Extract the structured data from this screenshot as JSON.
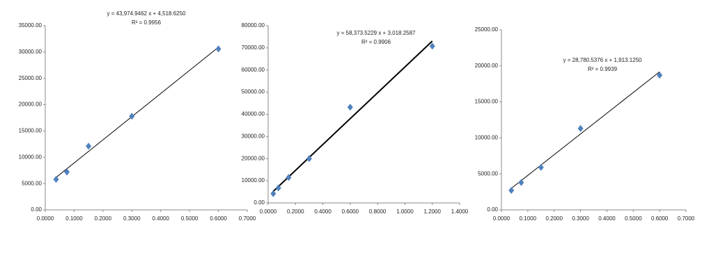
{
  "chart_data": [
    {
      "type": "scatter",
      "color": "#4f81bd",
      "trend_color": "#000000",
      "x": [
        0.0375,
        0.075,
        0.15,
        0.3,
        0.6
      ],
      "values": [
        5800,
        7200,
        12100,
        17800,
        30600
      ],
      "trendline": {
        "x": [
          0.0375,
          0.6
        ],
        "values": [
          6168,
          30904
        ]
      },
      "equation": "y = 43,974.9462 x + 4,518.6250",
      "r_squared": "R² = 0.9956",
      "xlim": [
        0,
        0.7
      ],
      "xticks": [
        {
          "value": 0,
          "label": "0.0000"
        },
        {
          "value": 0.1,
          "label": "0.1000"
        },
        {
          "value": 0.2,
          "label": "0.2000"
        },
        {
          "value": 0.3,
          "label": "0.3000"
        },
        {
          "value": 0.4,
          "label": "0.4000"
        },
        {
          "value": 0.5,
          "label": "0.5000"
        },
        {
          "value": 0.6,
          "label": "0.6000"
        },
        {
          "value": 0.7,
          "label": "0.7000"
        }
      ],
      "ylim": [
        0,
        35000
      ],
      "yticks": [
        {
          "value": 0,
          "label": "0.00"
        },
        {
          "value": 5000,
          "label": "5000.00"
        },
        {
          "value": 10000,
          "label": "10000.00"
        },
        {
          "value": 15000,
          "label": "15000.00"
        },
        {
          "value": 20000,
          "label": "20000.00"
        },
        {
          "value": 25000,
          "label": "25000.00"
        },
        {
          "value": 30000,
          "label": "30000.00"
        },
        {
          "value": 35000,
          "label": "35000.00"
        }
      ]
    },
    {
      "type": "scatter",
      "color": "#4f81bd",
      "trend_color": "#000000",
      "x": [
        0.0375,
        0.075,
        0.15,
        0.3,
        0.6,
        1.2
      ],
      "values": [
        4200,
        6800,
        11500,
        20000,
        43200,
        70800
      ],
      "trendline": {
        "x": [
          0.0375,
          1.2
        ],
        "values": [
          5207,
          73066
        ]
      },
      "equation": "y = 58,373.5229 x + 3,018.2587",
      "r_squared": "R² = 0.9906",
      "xlim": [
        0,
        1.4
      ],
      "xticks": [
        {
          "value": 0,
          "label": "0.0000"
        },
        {
          "value": 0.2,
          "label": "0.2000"
        },
        {
          "value": 0.4,
          "label": "0.4000"
        },
        {
          "value": 0.6,
          "label": "0.6000"
        },
        {
          "value": 0.8,
          "label": "0.8000"
        },
        {
          "value": 1,
          "label": "1.0000"
        },
        {
          "value": 1.2,
          "label": "1.2000"
        },
        {
          "value": 1.4,
          "label": "1.4000"
        }
      ],
      "ylim": [
        0,
        80000
      ],
      "yticks": [
        {
          "value": 0,
          "label": "0.00"
        },
        {
          "value": 10000,
          "label": "10000.00"
        },
        {
          "value": 20000,
          "label": "20000.00"
        },
        {
          "value": 30000,
          "label": "30000.00"
        },
        {
          "value": 40000,
          "label": "40000.00"
        },
        {
          "value": 50000,
          "label": "50000.00"
        },
        {
          "value": 60000,
          "label": "60000.00"
        },
        {
          "value": 70000,
          "label": "70000.00"
        },
        {
          "value": 80000,
          "label": "80000.00"
        }
      ]
    },
    {
      "type": "scatter",
      "color": "#4f81bd",
      "trend_color": "#000000",
      "x": [
        0.0375,
        0.075,
        0.15,
        0.3,
        0.6
      ],
      "values": [
        2700,
        3800,
        5900,
        11300,
        18700
      ],
      "trendline": {
        "x": [
          0.0375,
          0.6
        ],
        "values": [
          2993,
          19182
        ]
      },
      "equation": "y = 28,780.5376 x + 1,913.1250",
      "r_squared": "R² = 0.9939",
      "xlim": [
        0,
        0.7
      ],
      "xticks": [
        {
          "value": 0,
          "label": "0.0000"
        },
        {
          "value": 0.1,
          "label": "0.1000"
        },
        {
          "value": 0.2,
          "label": "0.2000"
        },
        {
          "value": 0.3,
          "label": "0.3000"
        },
        {
          "value": 0.4,
          "label": "0.4000"
        },
        {
          "value": 0.5,
          "label": "0.5000"
        },
        {
          "value": 0.6,
          "label": "0.6000"
        },
        {
          "value": 0.7,
          "label": "0.7000"
        }
      ],
      "ylim": [
        0,
        25000
      ],
      "yticks": [
        {
          "value": 0,
          "label": "0.00"
        },
        {
          "value": 5000,
          "label": "5000.00"
        },
        {
          "value": 10000,
          "label": "10000.00"
        },
        {
          "value": 15000,
          "label": "15000.00"
        },
        {
          "value": 20000,
          "label": "20000.00"
        },
        {
          "value": 25000,
          "label": "25000.00"
        }
      ]
    }
  ]
}
